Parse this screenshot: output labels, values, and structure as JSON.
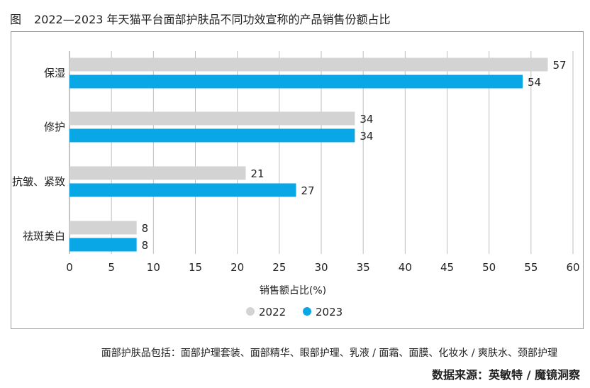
{
  "figure": {
    "prefix": "图",
    "title": "2022—2023 年天猫平台面部护肤品不同功效宣称的产品销售份额占比"
  },
  "footnote": "面部护肤品包括：面部护理套装、面部精华、眼部护理、乳液 / 面霜、面膜、化妆水 / 爽肤水、颈部护理",
  "source": "数据来源：英敏特 / 魔镜洞察",
  "colors": {
    "2022": "#d3d3d3",
    "2023": "#0aa7e6",
    "grid": "#bdbdbd",
    "axis": "#8a8a8a"
  },
  "chart_data": {
    "type": "bar",
    "orientation": "horizontal",
    "categories": [
      "保湿",
      "修护",
      "抗皱、紧致",
      "祛斑美白"
    ],
    "series": [
      {
        "name": "2022",
        "values": [
          57,
          34,
          21,
          8
        ]
      },
      {
        "name": "2023",
        "values": [
          54,
          34,
          27,
          8
        ]
      }
    ],
    "xlabel": "销售额占比(%)",
    "xlim": [
      0,
      60
    ],
    "xticks": [
      0,
      5,
      10,
      15,
      20,
      25,
      30,
      35,
      40,
      45,
      50,
      55,
      60
    ],
    "grid": true,
    "legend": "bottom-center"
  }
}
